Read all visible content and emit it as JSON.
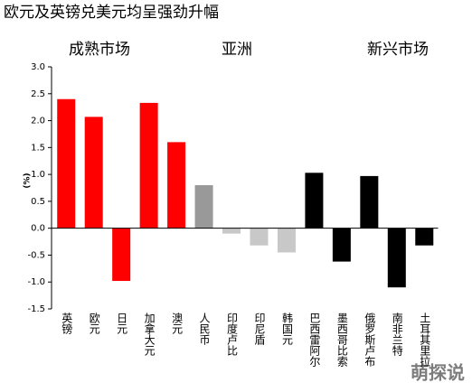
{
  "chart_data": {
    "type": "bar",
    "title": "欧元及英镑兑美元均呈强劲升幅",
    "annotations": [
      "成熟市场",
      "亚洲",
      "新兴市场"
    ],
    "ylabel": "(%)",
    "watermark": "萌探说",
    "categories": [
      "英镑",
      "欧元",
      "日元",
      "加拿大元",
      "澳元",
      "人民币",
      "印度卢比",
      "印尼盾",
      "韩国元",
      "巴西雷阿尔",
      "墨西哥比索",
      "俄罗斯卢布",
      "南非兰特",
      "土耳其里拉"
    ],
    "values": [
      2.4,
      2.07,
      -0.98,
      2.33,
      1.6,
      0.8,
      -0.1,
      -0.32,
      -0.45,
      1.03,
      -0.62,
      0.97,
      -1.1,
      -0.32
    ],
    "colors": [
      "#ff0000",
      "#ff0000",
      "#ff0000",
      "#ff0000",
      "#ff0000",
      "#999999",
      "#c8c8c8",
      "#c8c8c8",
      "#c8c8c8",
      "#000000",
      "#000000",
      "#000000",
      "#000000",
      "#000000"
    ],
    "ylim": [
      -1.5,
      3.0
    ],
    "yticks": [
      {
        "value": -1.5,
        "label": "-1.5"
      },
      {
        "value": -1.0,
        "label": "-1.0"
      },
      {
        "value": -0.5,
        "label": "-0.5"
      },
      {
        "value": 0,
        "label": "0.0"
      },
      {
        "value": 0.5,
        "label": "0.5"
      },
      {
        "value": 1.0,
        "label": "1.0"
      },
      {
        "value": 1.5,
        "label": "1.5"
      },
      {
        "value": 2.0,
        "label": "2.0"
      },
      {
        "value": 2.5,
        "label": "2.5"
      },
      {
        "value": 3.0,
        "label": "3.0"
      }
    ],
    "grid": false
  }
}
